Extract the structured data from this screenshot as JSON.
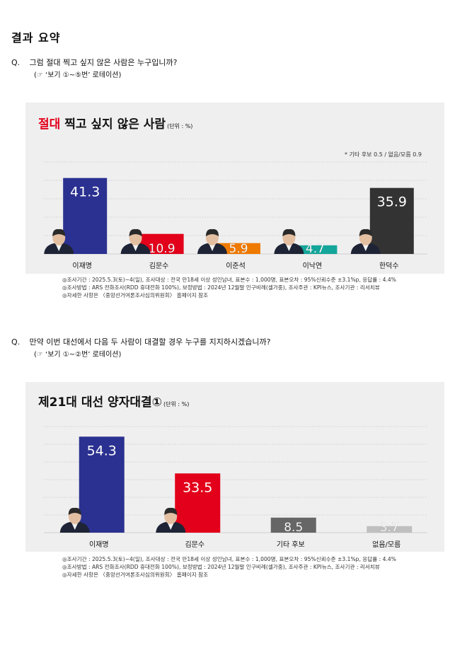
{
  "page": {
    "title": "결과 요약"
  },
  "question1": {
    "label": "Q.",
    "text": "그럼 절대 찍고 싶지 않은 사람은 누구입니까?",
    "sub": "(☞ ‘보기 ①~⑤번’ 로테이션)"
  },
  "question2": {
    "label": "Q.",
    "text": "만약 이번 대선에서 다음 두 사람이 대결할 경우 누구를 지지하시겠습니까?",
    "sub": "(☞ ‘보기 ①~②번’ 로테이션)"
  },
  "footnotes": [
    "◎조사기간 : 2025.5.3(토)~4(일), 조사대상 : 전국 만18세 이상 성인남녀, 표본수 : 1,000명, 표본오차 : 95%신뢰수준 ±3.1%p, 응답률 : 4.4%",
    "◎조사방법 : ARS 전화조사(RDD 휴대전화 100%), 보정방법 : 2024년 12월말 인구비례(셀가중), 조사주관 : KPI뉴스, 조사기관 : 리서치뷰",
    "◎자세한 사항은 〈중앙선거여론조사심의위원회〉 홈페이지 참조"
  ],
  "chart_data": [
    {
      "type": "bar",
      "title_highlight": "절대",
      "title_rest": " 찍고 싶지 않은 사람",
      "unit": "(단위 : %)",
      "note": "* 기타 후보 0.5 / 없음/모름 0.9",
      "categories": [
        "이재명",
        "김문수",
        "이준석",
        "이낙연",
        "한덕수"
      ],
      "values": [
        41.3,
        10.9,
        5.9,
        4.7,
        35.9
      ],
      "colors": [
        "#2b3190",
        "#e2001a",
        "#ef7a00",
        "#14a69a",
        "#333333"
      ],
      "label_colors": [
        "#ffffff",
        "#ffffff",
        "#ffffff",
        "#ffffff",
        "#ffffff"
      ],
      "portraits": [
        true,
        true,
        true,
        true,
        true
      ],
      "ylim": [
        0,
        50
      ],
      "grid": true
    },
    {
      "type": "bar",
      "title_highlight": "",
      "title_rest": "제21대 대선 양자대결①",
      "unit": "(단위 : %)",
      "note": "",
      "categories": [
        "이재명",
        "김문수",
        "기타 후보",
        "없음/모름"
      ],
      "values": [
        54.3,
        33.5,
        8.5,
        3.7
      ],
      "colors": [
        "#2b3190",
        "#e2001a",
        "#666666",
        "#bfbfbf"
      ],
      "label_colors": [
        "#ffffff",
        "#ffffff",
        "#ffffff",
        "#ffffff"
      ],
      "portraits": [
        true,
        true,
        false,
        false
      ],
      "ylim": [
        0,
        60
      ],
      "grid": true
    }
  ]
}
